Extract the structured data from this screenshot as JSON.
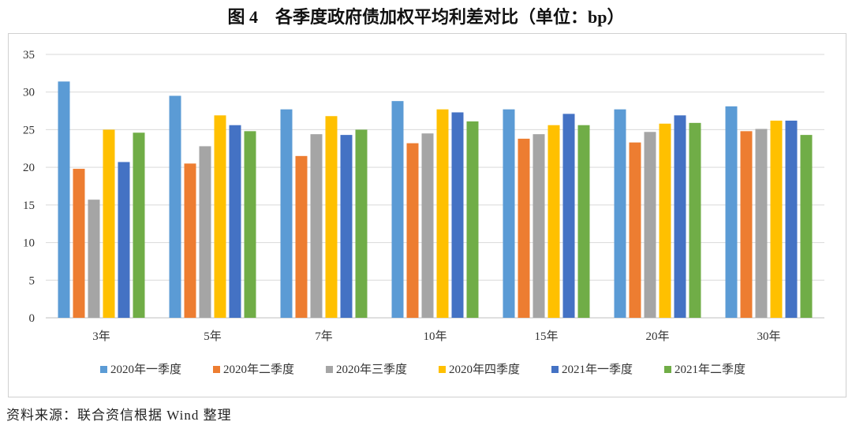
{
  "title": "图 4　各季度政府债加权平均利差对比（单位：bp）",
  "source": "资料来源：联合资信根据 Wind 整理",
  "chart_data": {
    "type": "bar",
    "title": "图 4　各季度政府债加权平均利差对比（单位：bp）",
    "categories": [
      "3年",
      "5年",
      "7年",
      "10年",
      "15年",
      "20年",
      "30年"
    ],
    "ylim": [
      0,
      35
    ],
    "yticks": [
      0,
      5,
      10,
      15,
      20,
      25,
      30,
      35
    ],
    "grid": true,
    "legend": "bottom",
    "series": [
      {
        "name": "2020年一季度",
        "color": "#5B9BD5",
        "values": [
          31.4,
          29.5,
          27.7,
          28.8,
          27.7,
          27.7,
          28.1
        ]
      },
      {
        "name": "2020年二季度",
        "color": "#ED7D31",
        "values": [
          19.8,
          20.5,
          21.5,
          23.2,
          23.8,
          23.3,
          24.8
        ]
      },
      {
        "name": "2020年三季度",
        "color": "#A5A5A5",
        "values": [
          15.7,
          22.8,
          24.4,
          24.5,
          24.4,
          24.7,
          25.1
        ]
      },
      {
        "name": "2020年四季度",
        "color": "#FFC000",
        "values": [
          25.0,
          26.9,
          26.8,
          27.7,
          25.6,
          25.8,
          26.2
        ]
      },
      {
        "name": "2021年一季度",
        "color": "#4472C4",
        "values": [
          20.7,
          25.6,
          24.3,
          27.3,
          27.1,
          26.9,
          26.2
        ]
      },
      {
        "name": "2021年二季度",
        "color": "#70AD47",
        "values": [
          24.6,
          24.8,
          25.0,
          26.1,
          25.6,
          25.9,
          24.3
        ]
      }
    ]
  }
}
